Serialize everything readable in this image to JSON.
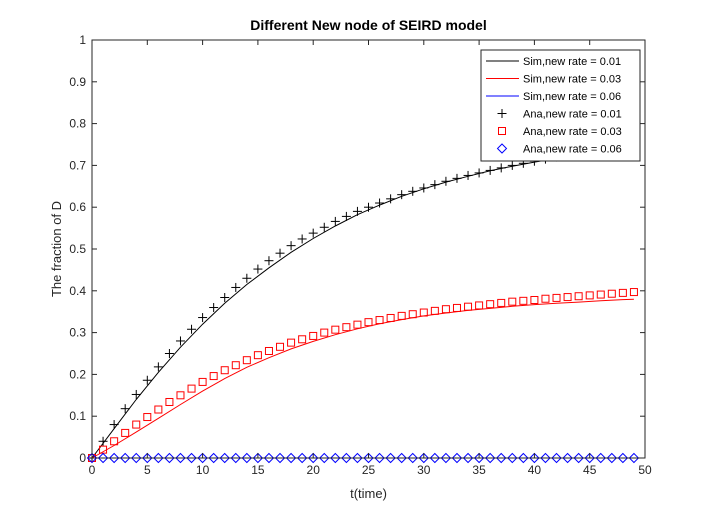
{
  "chart_data": {
    "type": "line",
    "title": "Different New node of SEIRD model",
    "xlabel": "t(time)",
    "ylabel": "The fraction of D",
    "xlim": [
      0,
      50
    ],
    "ylim": [
      0,
      1
    ],
    "xticks": [
      0,
      5,
      10,
      15,
      20,
      25,
      30,
      35,
      40,
      45,
      50
    ],
    "yticks": [
      0,
      0.1,
      0.2,
      0.3,
      0.4,
      0.5,
      0.6,
      0.7,
      0.8,
      0.9,
      1
    ],
    "xtick_labels": [
      "0",
      "5",
      "10",
      "15",
      "20",
      "25",
      "30",
      "35",
      "40",
      "45",
      "50"
    ],
    "ytick_labels": [
      "0",
      "0.1",
      "0.2",
      "0.3",
      "0.4",
      "0.5",
      "0.6",
      "0.7",
      "0.8",
      "0.9",
      "1"
    ],
    "grid": false,
    "legend_position": "top-right",
    "series": [
      {
        "name": "Sim,new rate = 0.01",
        "kind": "line",
        "color": "#000000",
        "x": [
          0,
          2,
          4,
          6,
          8,
          10,
          12,
          14,
          16,
          18,
          20,
          22,
          24,
          26,
          28,
          30,
          32,
          34,
          36,
          38,
          40,
          42,
          44,
          46,
          48,
          49
        ],
        "y": [
          0.0,
          0.07,
          0.14,
          0.205,
          0.265,
          0.32,
          0.37,
          0.415,
          0.455,
          0.492,
          0.525,
          0.555,
          0.582,
          0.605,
          0.626,
          0.644,
          0.66,
          0.674,
          0.687,
          0.698,
          0.708,
          0.717,
          0.725,
          0.733,
          0.74,
          0.743
        ]
      },
      {
        "name": "Sim,new rate = 0.03",
        "kind": "line",
        "color": "#ff0000",
        "x": [
          0,
          2,
          4,
          6,
          8,
          10,
          12,
          14,
          16,
          18,
          20,
          22,
          24,
          26,
          28,
          30,
          32,
          34,
          36,
          38,
          40,
          42,
          44,
          46,
          48,
          49
        ],
        "y": [
          0.0,
          0.03,
          0.062,
          0.095,
          0.128,
          0.16,
          0.19,
          0.217,
          0.24,
          0.261,
          0.279,
          0.295,
          0.309,
          0.321,
          0.331,
          0.34,
          0.347,
          0.353,
          0.358,
          0.363,
          0.367,
          0.37,
          0.373,
          0.376,
          0.379,
          0.38
        ]
      },
      {
        "name": "Sim,new rate = 0.06",
        "kind": "line",
        "color": "#0000ff",
        "x": [
          0,
          49
        ],
        "y": [
          0.0,
          0.0
        ]
      },
      {
        "name": "Ana,new rate = 0.01",
        "kind": "marker",
        "marker": "plus",
        "color": "#000000",
        "x": [
          0,
          1,
          2,
          3,
          4,
          5,
          6,
          7,
          8,
          9,
          10,
          11,
          12,
          13,
          14,
          15,
          16,
          17,
          18,
          19,
          20,
          21,
          22,
          23,
          24,
          25,
          26,
          27,
          28,
          29,
          30,
          31,
          32,
          33,
          34,
          35,
          36,
          37,
          38,
          39,
          40,
          41,
          42,
          43,
          44,
          45,
          46,
          47,
          48,
          49
        ],
        "y": [
          0.0,
          0.04,
          0.08,
          0.118,
          0.152,
          0.186,
          0.218,
          0.25,
          0.28,
          0.308,
          0.336,
          0.36,
          0.384,
          0.408,
          0.43,
          0.452,
          0.472,
          0.49,
          0.508,
          0.524,
          0.538,
          0.552,
          0.566,
          0.578,
          0.59,
          0.6,
          0.61,
          0.62,
          0.63,
          0.638,
          0.646,
          0.654,
          0.662,
          0.669,
          0.676,
          0.682,
          0.688,
          0.694,
          0.7,
          0.705,
          0.71,
          0.715,
          0.72,
          0.725,
          0.73,
          0.734,
          0.738,
          0.742,
          0.746,
          0.75
        ]
      },
      {
        "name": "Ana,new rate = 0.03",
        "kind": "marker",
        "marker": "square",
        "color": "#ff0000",
        "x": [
          0,
          1,
          2,
          3,
          4,
          5,
          6,
          7,
          8,
          9,
          10,
          11,
          12,
          13,
          14,
          15,
          16,
          17,
          18,
          19,
          20,
          21,
          22,
          23,
          24,
          25,
          26,
          27,
          28,
          29,
          30,
          31,
          32,
          33,
          34,
          35,
          36,
          37,
          38,
          39,
          40,
          41,
          42,
          43,
          44,
          45,
          46,
          47,
          48,
          49
        ],
        "y": [
          0.0,
          0.02,
          0.04,
          0.06,
          0.08,
          0.098,
          0.116,
          0.134,
          0.15,
          0.166,
          0.182,
          0.196,
          0.21,
          0.222,
          0.234,
          0.246,
          0.256,
          0.266,
          0.276,
          0.284,
          0.292,
          0.3,
          0.307,
          0.313,
          0.319,
          0.325,
          0.33,
          0.335,
          0.34,
          0.344,
          0.348,
          0.352,
          0.356,
          0.359,
          0.362,
          0.365,
          0.368,
          0.371,
          0.374,
          0.376,
          0.378,
          0.381,
          0.383,
          0.385,
          0.387,
          0.389,
          0.391,
          0.393,
          0.395,
          0.397
        ]
      },
      {
        "name": "Ana,new rate = 0.06",
        "kind": "marker",
        "marker": "diamond",
        "color": "#0000ff",
        "x": [
          0,
          1,
          2,
          3,
          4,
          5,
          6,
          7,
          8,
          9,
          10,
          11,
          12,
          13,
          14,
          15,
          16,
          17,
          18,
          19,
          20,
          21,
          22,
          23,
          24,
          25,
          26,
          27,
          28,
          29,
          30,
          31,
          32,
          33,
          34,
          35,
          36,
          37,
          38,
          39,
          40,
          41,
          42,
          43,
          44,
          45,
          46,
          47,
          48,
          49
        ],
        "y": [
          0,
          0,
          0,
          0,
          0,
          0,
          0,
          0,
          0,
          0,
          0,
          0,
          0,
          0,
          0,
          0,
          0,
          0,
          0,
          0,
          0,
          0,
          0,
          0,
          0,
          0,
          0,
          0,
          0,
          0,
          0,
          0,
          0,
          0,
          0,
          0,
          0,
          0,
          0,
          0,
          0,
          0,
          0,
          0,
          0,
          0,
          0,
          0,
          0,
          0
        ]
      }
    ]
  }
}
